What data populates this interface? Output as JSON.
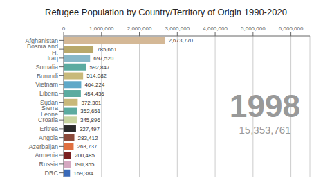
{
  "chart_data": {
    "type": "bar",
    "orientation": "horizontal",
    "title": "Refugee Population by Country/Territory of Origin 1990-2020",
    "categories": [
      "Afghanistan",
      "Bosnia and H.",
      "Iraq",
      "Somalia",
      "Burundi",
      "Vietnam",
      "Liberia",
      "Sudan",
      "Sierra Leone",
      "Croatia",
      "Eritrea",
      "Angola",
      "Azerbaijan",
      "Armenia",
      "Russia",
      "DRC"
    ],
    "values": [
      2673770,
      785661,
      697520,
      592847,
      514082,
      464224,
      454436,
      372301,
      352651,
      345896,
      327497,
      283412,
      263737,
      200485,
      190355,
      169384
    ],
    "value_labels": [
      "2,673,770",
      "785,661",
      "697,520",
      "592,847",
      "514,082",
      "464,224",
      "454,436",
      "372,301",
      "352,651",
      "345,896",
      "327,497",
      "283,412",
      "263,737",
      "200,485",
      "190,355",
      "169,384"
    ],
    "data_labels": true,
    "colors": [
      "#d4b896",
      "#b8a86a",
      "#87b8c8",
      "#5baba0",
      "#c8b97a",
      "#5fa8c8",
      "#5baba0",
      "#c8b87a",
      "#5baba0",
      "#c8d4a0",
      "#2a2a2a",
      "#8b4a3a",
      "#e07040",
      "#7a2020",
      "#d4a8c0",
      "#3a6ab8"
    ],
    "xlim": [
      0,
      6500000
    ],
    "xticks": [
      0,
      {
        "value": 1000000,
        "label": "1,000,000"
      },
      {
        "value": 2000000,
        "label": "2,000,000"
      },
      {
        "value": 3000000,
        "label": "3,000,000"
      },
      {
        "value": 4000000,
        "label": "4,000,000"
      },
      {
        "value": 5000000,
        "label": "5,000,000"
      },
      {
        "value": 6000000,
        "label": "6,000,000"
      }
    ],
    "grid": true,
    "annotations": [
      "1998",
      "15,353,761"
    ]
  }
}
